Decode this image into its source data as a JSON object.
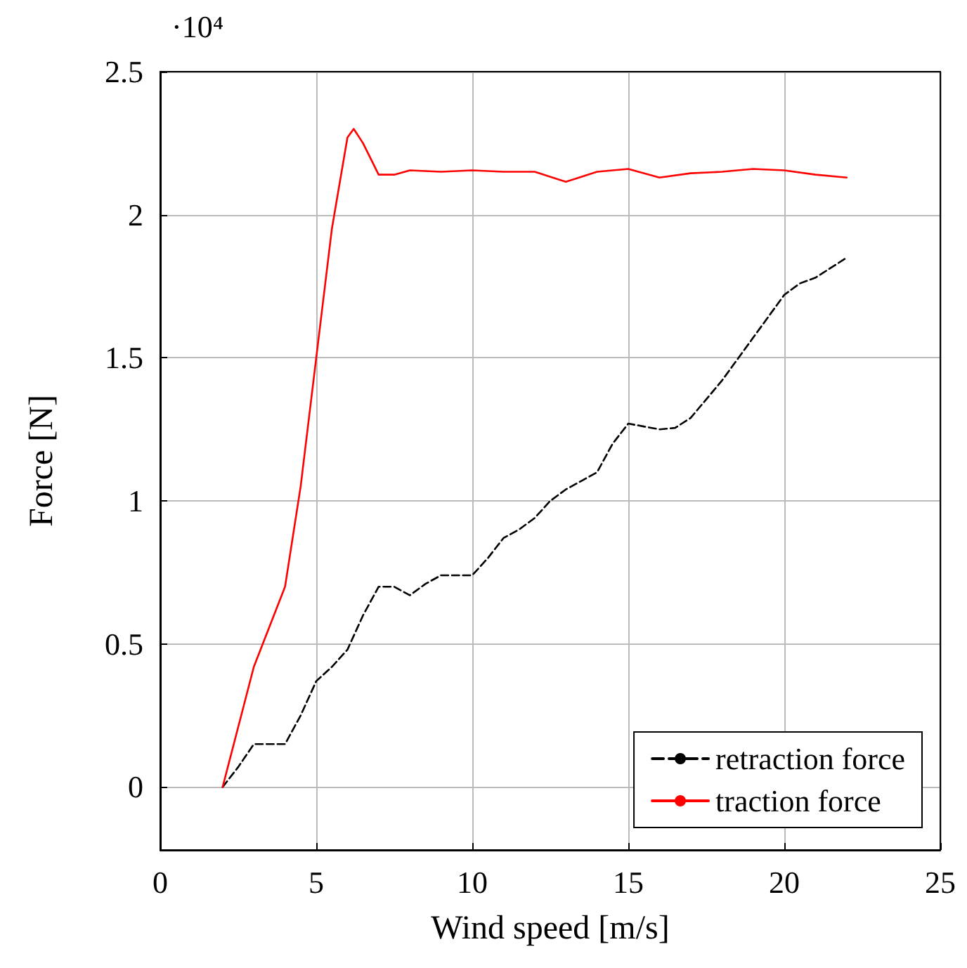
{
  "chart_data": {
    "type": "line",
    "xlabel": "Wind speed [m/s]",
    "ylabel": "Force [N]",
    "annotations": [
      "·10⁴"
    ],
    "xlim": [
      0,
      25
    ],
    "xticks": [
      0,
      5,
      10,
      15,
      20,
      25
    ],
    "ylim": [
      -0.22,
      2.5
    ],
    "yticks": [
      0,
      0.5,
      1,
      1.5,
      2,
      2.5
    ],
    "grid": true,
    "legend": "bottom right",
    "marker": "none",
    "series": [
      {
        "name": "retraction force",
        "color": "#000000",
        "line_style": "dashed",
        "x": [
          2,
          2.5,
          3,
          3.5,
          4,
          4.5,
          5,
          5.5,
          6,
          6.5,
          7,
          7.5,
          8,
          8.5,
          9,
          9.5,
          10,
          10.5,
          11,
          11.5,
          12,
          12.5,
          13,
          13.5,
          14,
          14.5,
          15,
          15.5,
          16,
          16.5,
          17,
          18,
          19,
          20,
          20.5,
          21,
          22
        ],
        "values": [
          0,
          0.07,
          0.15,
          0.15,
          0.15,
          0.25,
          0.37,
          0.42,
          0.48,
          0.6,
          0.7,
          0.7,
          0.67,
          0.71,
          0.74,
          0.74,
          0.74,
          0.8,
          0.87,
          0.9,
          0.94,
          1.0,
          1.04,
          1.07,
          1.1,
          1.2,
          1.27,
          1.26,
          1.25,
          1.255,
          1.29,
          1.42,
          1.57,
          1.72,
          1.76,
          1.78,
          1.85
        ]
      },
      {
        "name": "traction force",
        "color": "#ff0000",
        "line_style": "solid",
        "x": [
          2,
          3,
          4,
          4.5,
          5,
          5.5,
          6,
          6.2,
          6.5,
          7,
          7.5,
          8,
          9,
          10,
          11,
          12,
          13,
          14,
          15,
          16,
          17,
          18,
          19,
          20,
          21,
          22
        ],
        "values": [
          0,
          0.42,
          0.7,
          1.05,
          1.5,
          1.95,
          2.27,
          2.3,
          2.25,
          2.14,
          2.14,
          2.155,
          2.15,
          2.155,
          2.15,
          2.15,
          2.115,
          2.15,
          2.16,
          2.13,
          2.145,
          2.15,
          2.16,
          2.155,
          2.14,
          2.13
        ]
      }
    ]
  }
}
